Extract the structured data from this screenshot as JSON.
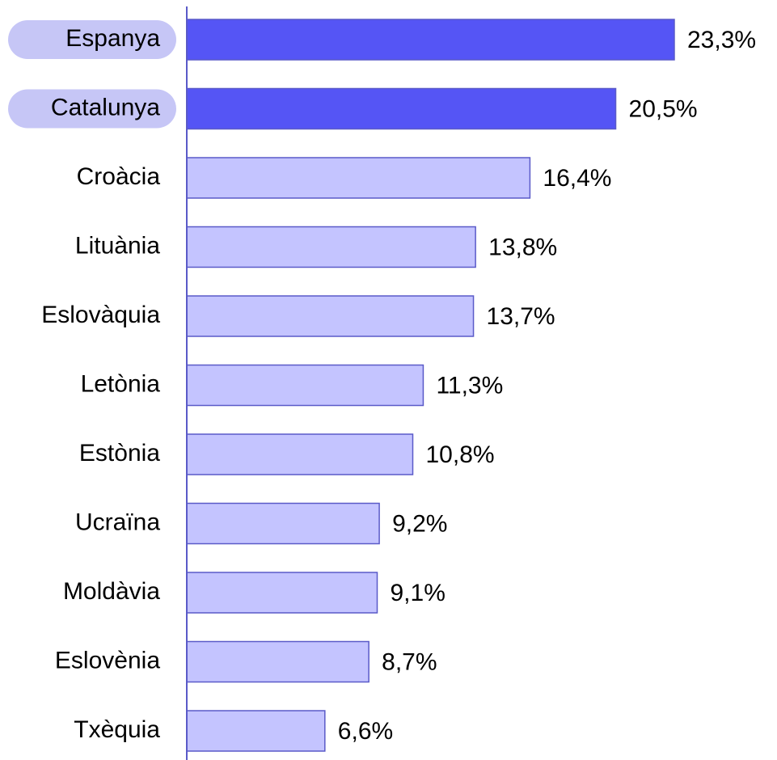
{
  "chart_data": {
    "type": "hbar",
    "categories": [
      "Espanya",
      "Catalunya",
      "Croàcia",
      "Lituània",
      "Eslovàquia",
      "Letònia",
      "Estònia",
      "Ucraïna",
      "Moldàvia",
      "Eslovènia",
      "Txèquia"
    ],
    "values": [
      23.3,
      20.5,
      16.4,
      13.8,
      13.7,
      11.3,
      10.8,
      9.2,
      9.1,
      8.7,
      6.6
    ],
    "value_labels": [
      "23,3%",
      "20,5%",
      "16,4%",
      "13,8%",
      "13,7%",
      "11,3%",
      "10,8%",
      "9,2%",
      "9,1%",
      "8,7%",
      "6,6%"
    ],
    "colors": [
      "#5555f5",
      "#5555f5",
      "#c4c4ff",
      "#c4c4ff",
      "#c4c4ff",
      "#c4c4ff",
      "#c4c4ff",
      "#c4c4ff",
      "#c4c4ff",
      "#c4c4ff",
      "#c4c4ff"
    ],
    "highlight": [
      true,
      true,
      false,
      false,
      false,
      false,
      false,
      false,
      false,
      false,
      false
    ],
    "highlight_color": "#c6c6f6",
    "edge_color": "#5a5ac8"
  }
}
